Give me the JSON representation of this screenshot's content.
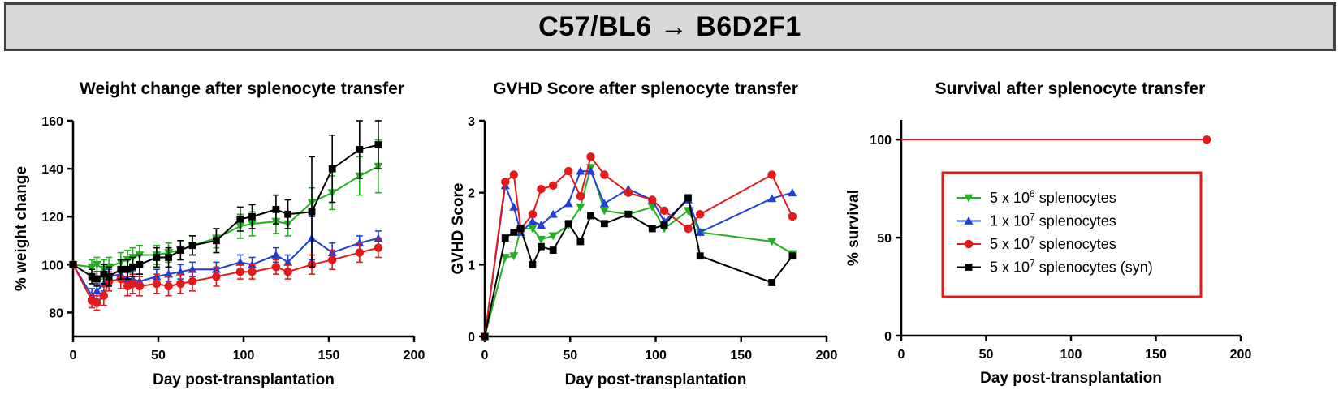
{
  "banner": {
    "left": "C57/BL6",
    "arrow": "→",
    "right": "B6D2F1"
  },
  "chart_data": [
    {
      "type": "line",
      "title": "Weight change after splenocyte transfer",
      "xlabel": "Day post-transplantation",
      "ylabel": "% weight change",
      "xlim": [
        0,
        200
      ],
      "ylim": [
        70,
        160
      ],
      "xticks": [
        0,
        50,
        100,
        150,
        200
      ],
      "yticks": [
        80,
        100,
        120,
        140,
        160
      ],
      "series": [
        {
          "name": "5 x 10^6 splenocytes",
          "color": "#22b022",
          "marker": "triangle-down",
          "x": [
            0,
            11,
            14,
            18,
            21,
            28,
            32,
            35,
            39,
            49,
            56,
            63,
            70,
            84,
            98,
            105,
            119,
            126,
            140,
            152,
            168,
            179
          ],
          "y": [
            100,
            99,
            100,
            98,
            99,
            101,
            102,
            103,
            104,
            104,
            105,
            106,
            108,
            111,
            116,
            117,
            118,
            117,
            126,
            130,
            137,
            141
          ],
          "err": [
            0,
            3,
            3,
            4,
            4,
            4,
            4,
            4,
            4,
            4,
            4,
            4,
            4,
            4,
            5,
            5,
            5,
            5,
            6,
            7,
            8,
            11
          ]
        },
        {
          "name": "1 x 10^7 splenocytes",
          "color": "#1f3fd6",
          "marker": "triangle-up",
          "x": [
            0,
            11,
            14,
            18,
            21,
            28,
            32,
            35,
            39,
            49,
            56,
            63,
            70,
            84,
            98,
            105,
            119,
            126,
            140,
            152,
            168,
            179
          ],
          "y": [
            100,
            87,
            89,
            92,
            95,
            96,
            94,
            94,
            93,
            95,
            96,
            97,
            98,
            98,
            101,
            100,
            104,
            101,
            111,
            105,
            109,
            111
          ],
          "err": [
            0,
            3,
            3,
            3,
            3,
            3,
            3,
            3,
            3,
            3,
            3,
            3,
            3,
            3,
            3,
            3,
            3,
            3,
            9,
            4,
            3,
            3
          ]
        },
        {
          "name": "5 x 10^7 splenocytes",
          "color": "#e41a1a",
          "marker": "circle",
          "x": [
            0,
            11,
            14,
            18,
            21,
            28,
            32,
            35,
            39,
            49,
            56,
            63,
            70,
            84,
            98,
            105,
            119,
            126,
            140,
            152,
            168,
            179
          ],
          "y": [
            100,
            85,
            84,
            87,
            93,
            94,
            91,
            92,
            91,
            92,
            91,
            92,
            93,
            95,
            97,
            97,
            99,
            97,
            100,
            102,
            105,
            107
          ],
          "err": [
            0,
            3,
            3,
            4,
            4,
            4,
            4,
            4,
            4,
            4,
            4,
            4,
            4,
            4,
            3,
            3,
            3,
            3,
            4,
            4,
            4,
            4
          ]
        },
        {
          "name": "5 x 10^7 splenocytes (syn)",
          "color": "#000000",
          "marker": "square",
          "x": [
            0,
            11,
            14,
            18,
            21,
            28,
            32,
            35,
            39,
            49,
            56,
            63,
            70,
            84,
            98,
            105,
            119,
            126,
            140,
            152,
            168,
            179
          ],
          "y": [
            100,
            95,
            94,
            96,
            95,
            98,
            98,
            99,
            100,
            103,
            103,
            106,
            108,
            110,
            119,
            120,
            123,
            121,
            122,
            140,
            148,
            150
          ],
          "err": [
            0,
            3,
            3,
            4,
            4,
            4,
            4,
            4,
            4,
            4,
            4,
            4,
            4,
            5,
            5,
            5,
            6,
            6,
            23,
            14,
            12,
            10
          ]
        }
      ]
    },
    {
      "type": "line",
      "title": "GVHD Score after splenocyte transfer",
      "xlabel": "Day post-transplantation",
      "ylabel": "GVHD Score",
      "xlim": [
        0,
        200
      ],
      "ylim": [
        0,
        3
      ],
      "xticks": [
        0,
        50,
        100,
        150,
        200
      ],
      "yticks": [
        0,
        1,
        2,
        3
      ],
      "series": [
        {
          "name": "5 x 10^6 splenocytes",
          "color": "#22b022",
          "marker": "triangle-down",
          "x": [
            0,
            12,
            17,
            21,
            28,
            33,
            40,
            49,
            56,
            62,
            70,
            84,
            98,
            105,
            119,
            126,
            168,
            180
          ],
          "y": [
            0,
            1.1,
            1.12,
            1.5,
            1.5,
            1.35,
            1.4,
            1.55,
            1.8,
            2.35,
            1.75,
            1.7,
            1.8,
            1.5,
            1.75,
            1.45,
            1.32,
            1.15
          ]
        },
        {
          "name": "1 x 10^7 splenocytes",
          "color": "#1f3fd6",
          "marker": "triangle-up",
          "x": [
            0,
            12,
            17,
            21,
            28,
            33,
            40,
            49,
            56,
            62,
            70,
            84,
            98,
            105,
            119,
            126,
            168,
            180
          ],
          "y": [
            0,
            2.1,
            1.8,
            1.45,
            1.6,
            1.55,
            1.7,
            1.85,
            2.3,
            2.3,
            1.85,
            2.05,
            1.9,
            1.6,
            1.9,
            1.45,
            1.92,
            2.0
          ]
        },
        {
          "name": "5 x 10^7 splenocytes",
          "color": "#e41a1a",
          "marker": "circle",
          "x": [
            0,
            12,
            17,
            21,
            28,
            33,
            40,
            49,
            56,
            62,
            70,
            84,
            98,
            105,
            119,
            126,
            168,
            180
          ],
          "y": [
            0,
            2.15,
            2.25,
            1.5,
            1.7,
            2.05,
            2.1,
            2.3,
            1.95,
            2.5,
            2.25,
            2.0,
            1.9,
            1.75,
            1.5,
            1.7,
            2.25,
            1.67
          ]
        },
        {
          "name": "5 x 10^7 splenocytes (syn)",
          "color": "#000000",
          "marker": "square",
          "x": [
            0,
            12,
            17,
            21,
            28,
            33,
            40,
            49,
            56,
            62,
            70,
            84,
            98,
            105,
            119,
            126,
            168,
            180
          ],
          "y": [
            0,
            1.37,
            1.45,
            1.5,
            1.0,
            1.25,
            1.2,
            1.57,
            1.32,
            1.68,
            1.57,
            1.7,
            1.5,
            1.55,
            1.93,
            1.12,
            0.75,
            1.12
          ]
        }
      ]
    },
    {
      "type": "line",
      "title": "Survival after splenocyte transfer",
      "xlabel": "Day post-transplantation",
      "ylabel": "% survival",
      "xlim": [
        0,
        200
      ],
      "ylim": [
        0,
        110
      ],
      "xticks": [
        0,
        50,
        100,
        150,
        200
      ],
      "yticks": [
        0,
        50,
        100
      ],
      "series": [
        {
          "name": "5 x 10^7 splenocytes",
          "color": "#e41a1a",
          "marker": "circle",
          "x": [
            0,
            180
          ],
          "y": [
            100,
            100
          ],
          "end_marker_only": true
        }
      ],
      "legend": {
        "position": "center-right",
        "border_color": "#e41a1a",
        "entries": [
          {
            "label_main": "5 x 10",
            "label_sup": "6",
            "label_rest": " splenocytes",
            "color": "#22b022",
            "marker": "triangle-down"
          },
          {
            "label_main": "1 x 10",
            "label_sup": "7",
            "label_rest": " splenocytes",
            "color": "#1f3fd6",
            "marker": "triangle-up"
          },
          {
            "label_main": "5 x 10",
            "label_sup": "7",
            "label_rest": " splenocytes",
            "color": "#e41a1a",
            "marker": "circle"
          },
          {
            "label_main": "5 x 10",
            "label_sup": "7",
            "label_rest": " splenocytes (syn)",
            "color": "#000000",
            "marker": "square"
          }
        ]
      }
    }
  ]
}
